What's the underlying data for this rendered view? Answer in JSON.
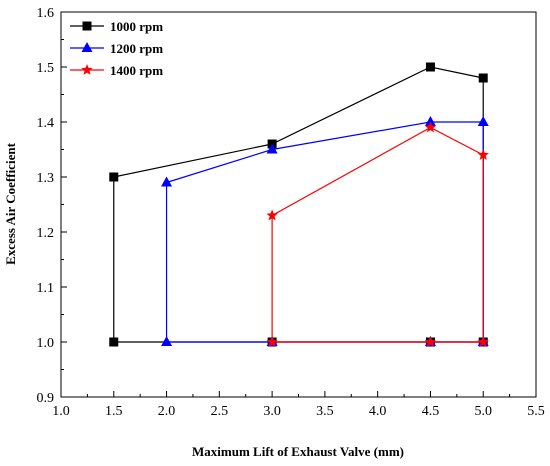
{
  "chart_data": {
    "type": "line",
    "title": "",
    "xlabel": "Maximum Lift of Exhaust Valve (mm)",
    "ylabel": "Excess Air Coefficient",
    "xlim": [
      1.0,
      5.5
    ],
    "ylim": [
      0.9,
      1.6
    ],
    "xticks": [
      1.0,
      1.5,
      2.0,
      2.5,
      3.0,
      3.5,
      4.0,
      4.5,
      5.0,
      5.5
    ],
    "yticks": [
      0.9,
      1.0,
      1.1,
      1.2,
      1.3,
      1.4,
      1.5,
      1.6
    ],
    "xtick_labels": [
      "1.0",
      "1.5",
      "2.0",
      "2.5",
      "3.0",
      "3.5",
      "4.0",
      "4.5",
      "5.0",
      "5.5"
    ],
    "ytick_labels": [
      "0.9",
      "1.0",
      "1.1",
      "1.2",
      "1.3",
      "1.4",
      "1.5",
      "1.6"
    ],
    "grid": false,
    "legend_position": "top-left",
    "series": [
      {
        "name": "1000 rpm",
        "color": "#000000",
        "marker": "square",
        "points": [
          [
            1.5,
            1.0
          ],
          [
            1.5,
            1.3
          ],
          [
            3.0,
            1.36
          ],
          [
            4.5,
            1.5
          ],
          [
            5.0,
            1.48
          ],
          [
            5.0,
            1.0
          ],
          [
            4.5,
            1.0
          ],
          [
            3.0,
            1.0
          ],
          [
            1.5,
            1.0
          ]
        ]
      },
      {
        "name": "1200 rpm",
        "color": "#0000ff",
        "marker": "triangle",
        "points": [
          [
            2.0,
            1.0
          ],
          [
            2.0,
            1.29
          ],
          [
            3.0,
            1.35
          ],
          [
            4.5,
            1.4
          ],
          [
            5.0,
            1.4
          ],
          [
            5.0,
            1.0
          ],
          [
            4.5,
            1.0
          ],
          [
            3.0,
            1.0
          ],
          [
            2.0,
            1.0
          ]
        ]
      },
      {
        "name": "1400 rpm",
        "color": "#ff0000",
        "marker": "star",
        "points": [
          [
            3.0,
            1.0
          ],
          [
            3.0,
            1.23
          ],
          [
            4.5,
            1.39
          ],
          [
            5.0,
            1.34
          ],
          [
            5.0,
            1.0
          ],
          [
            4.5,
            1.0
          ],
          [
            3.0,
            1.0
          ]
        ]
      }
    ]
  }
}
